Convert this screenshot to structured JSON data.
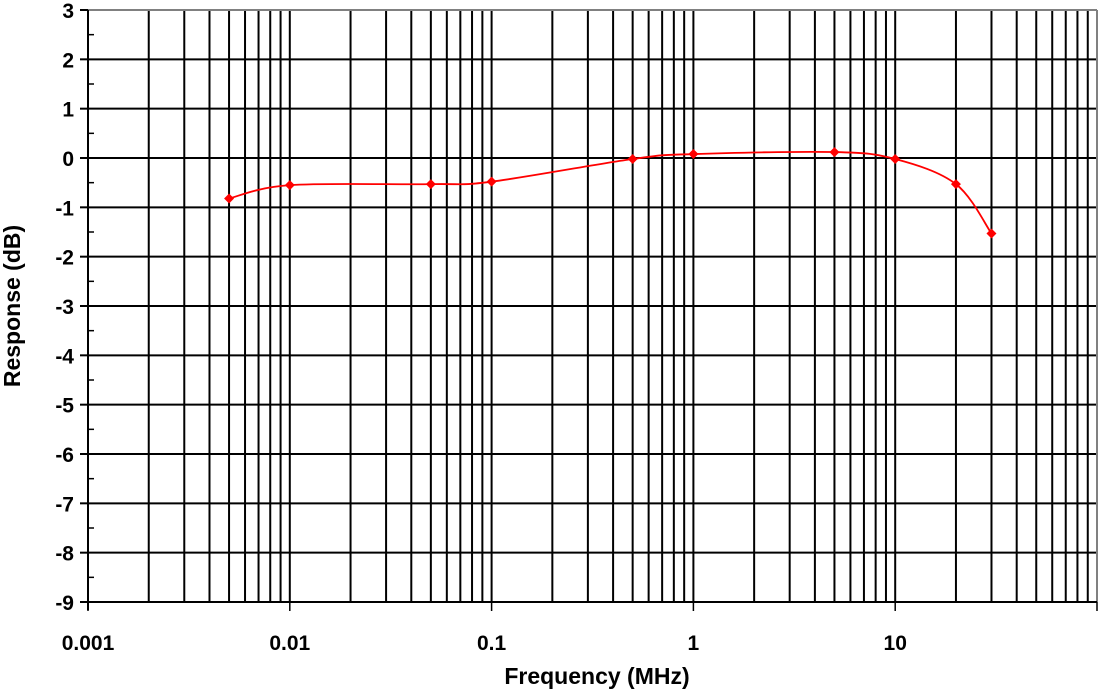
{
  "chart_data": {
    "type": "line",
    "title": "",
    "xlabel": "Frequency (MHz)",
    "ylabel": "Response (dB)",
    "xscale": "log",
    "xlim": [
      0.001,
      100
    ],
    "ylim": [
      -9,
      3
    ],
    "grid": true,
    "legend": null,
    "x_tick_labels": [
      "0.001",
      "0.01",
      "0.1",
      "1",
      "10"
    ],
    "x_ticks": [
      0.001,
      0.01,
      0.1,
      1,
      10
    ],
    "y_ticks": [
      3,
      2,
      1,
      0,
      -1,
      -2,
      -3,
      -4,
      -5,
      -6,
      -7,
      -8,
      -9
    ],
    "y_tick_labels": [
      "3",
      "2",
      "1",
      "0",
      "-1",
      "-2",
      "-3",
      "-4",
      "-5",
      "-6",
      "-7",
      "-8",
      "-9"
    ],
    "series": [
      {
        "name": "Response",
        "color": "#ff0000",
        "marker": "diamond",
        "smooth": true,
        "x": [
          0.005,
          0.01,
          0.05,
          0.1,
          0.5,
          1,
          5,
          10,
          20,
          30
        ],
        "y": [
          -0.82,
          -0.55,
          -0.53,
          -0.48,
          -0.02,
          0.08,
          0.12,
          -0.02,
          -0.53,
          -1.53
        ]
      }
    ]
  },
  "colors": {
    "grid": "#000000",
    "series": "#ff0000",
    "background": "#ffffff",
    "border": "#808080"
  }
}
